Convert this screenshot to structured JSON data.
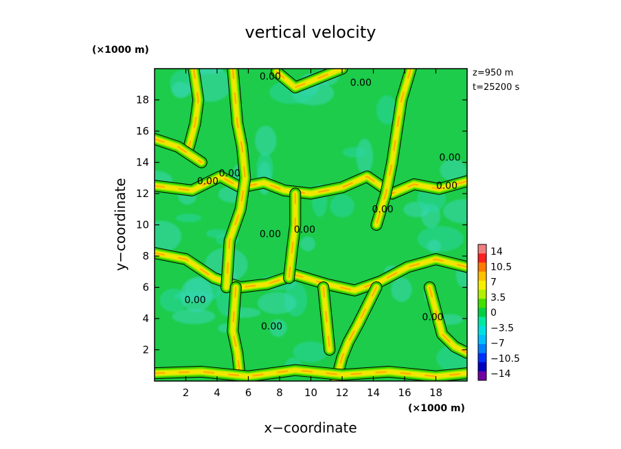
{
  "chart_data": {
    "type": "heatmap",
    "title": "vertical velocity",
    "xlabel": "x−coordinate",
    "ylabel": "y−coordinate",
    "x_unit": "(×1000 m)",
    "y_unit": "(×1000 m)",
    "annotation_lines": [
      "z=950 m",
      "t=25200 s"
    ],
    "xlim": [
      0,
      20
    ],
    "ylim": [
      0,
      20
    ],
    "x_ticks": [
      2,
      4,
      6,
      8,
      10,
      12,
      14,
      16,
      18
    ],
    "y_ticks": [
      2,
      4,
      6,
      8,
      10,
      12,
      14,
      16,
      18
    ],
    "x_tick_labels": [
      "2",
      "4",
      "6",
      "8",
      "10",
      "12",
      "14",
      "16",
      "18"
    ],
    "y_tick_labels": [
      "2",
      "4",
      "6",
      "8",
      "10",
      "12",
      "14",
      "16",
      "18"
    ],
    "colorbar": {
      "label_values": [
        "14",
        "10.5",
        "7",
        "3.5",
        "0",
        "−3.5",
        "−7",
        "−10.5",
        "−14"
      ],
      "range": [
        -14,
        14
      ],
      "colors": [
        "#f08080",
        "#ff2020",
        "#ff7a00",
        "#ffc000",
        "#f4f000",
        "#b0f000",
        "#40e000",
        "#00d040",
        "#00e8a0",
        "#00e0e0",
        "#00c0ff",
        "#0080ff",
        "#0030ff",
        "#0000c0",
        "#7000a0"
      ]
    },
    "contour_label_text": "0.00",
    "contour_labels": [
      {
        "x": 3.4,
        "y": 12.6
      },
      {
        "x": 4.8,
        "y": 13.1
      },
      {
        "x": 7.4,
        "y": 19.3
      },
      {
        "x": 13.2,
        "y": 18.9
      },
      {
        "x": 18.9,
        "y": 14.1
      },
      {
        "x": 18.7,
        "y": 12.3
      },
      {
        "x": 14.6,
        "y": 10.8
      },
      {
        "x": 7.4,
        "y": 9.2
      },
      {
        "x": 9.6,
        "y": 9.5
      },
      {
        "x": 2.6,
        "y": 5.0
      },
      {
        "x": 7.5,
        "y": 3.3
      },
      {
        "x": 17.8,
        "y": 3.9
      }
    ],
    "updraft_zones": [
      {
        "x": [
          0.0,
          2.4,
          4.2,
          5.5,
          7.0,
          8.3,
          10.0,
          12.0,
          13.6,
          15.2,
          16.6,
          18.2,
          20.0
        ],
        "y": [
          12.5,
          12.2,
          13.1,
          12.4,
          12.7,
          12.2,
          12.0,
          12.4,
          13.1,
          12.0,
          12.6,
          12.3,
          12.8
        ]
      },
      {
        "x": [
          0.0,
          2.0,
          3.8,
          5.5,
          7.2,
          9.0,
          11.0,
          12.8,
          14.5,
          16.2,
          18.0,
          20.0
        ],
        "y": [
          8.2,
          7.8,
          6.6,
          6.0,
          6.2,
          6.8,
          6.2,
          5.8,
          6.4,
          7.3,
          7.8,
          7.3
        ]
      },
      {
        "x": [
          5.0,
          5.3,
          5.6,
          5.8,
          5.5,
          4.8,
          4.6
        ],
        "y": [
          20.0,
          16.5,
          15.0,
          13.0,
          11.0,
          9.0,
          6.0
        ]
      },
      {
        "x": [
          5.2,
          5.1,
          5.0,
          5.3,
          5.5
        ],
        "y": [
          6.0,
          4.6,
          3.2,
          1.8,
          0.0
        ]
      },
      {
        "x": [
          16.4,
          15.8,
          15.5,
          15.2,
          14.8,
          14.2
        ],
        "y": [
          20.0,
          18.0,
          16.0,
          14.0,
          12.0,
          10.0
        ]
      },
      {
        "x": [
          14.2,
          13.6,
          13.0,
          12.4,
          12.0,
          11.6
        ],
        "y": [
          6.0,
          4.8,
          3.6,
          2.5,
          1.5,
          0.0
        ]
      },
      {
        "x": [
          9.0,
          9.0,
          8.8,
          8.6
        ],
        "y": [
          12.0,
          10.0,
          8.4,
          6.6
        ]
      },
      {
        "x": [
          0.0,
          3.0,
          6.0,
          9.0,
          12.0,
          15.0,
          18.0,
          20.0
        ],
        "y": [
          0.5,
          0.6,
          0.3,
          0.7,
          0.4,
          0.6,
          0.3,
          0.5
        ]
      },
      {
        "x": [
          2.5,
          2.8,
          2.6,
          2.2
        ],
        "y": [
          20.0,
          18.0,
          16.5,
          15.0
        ]
      },
      {
        "x": [
          7.8,
          9.0,
          10.5,
          12.0
        ],
        "y": [
          19.8,
          18.8,
          19.4,
          20.0
        ]
      },
      {
        "x": [
          0.0,
          1.5,
          3.0
        ],
        "y": [
          15.5,
          15.0,
          14.0
        ]
      },
      {
        "x": [
          17.6,
          18.0,
          18.4,
          19.2,
          20.0
        ],
        "y": [
          6.0,
          4.5,
          3.0,
          2.2,
          1.8
        ]
      },
      {
        "x": [
          10.8,
          11.0,
          11.2
        ],
        "y": [
          6.0,
          4.0,
          2.0
        ]
      }
    ]
  }
}
